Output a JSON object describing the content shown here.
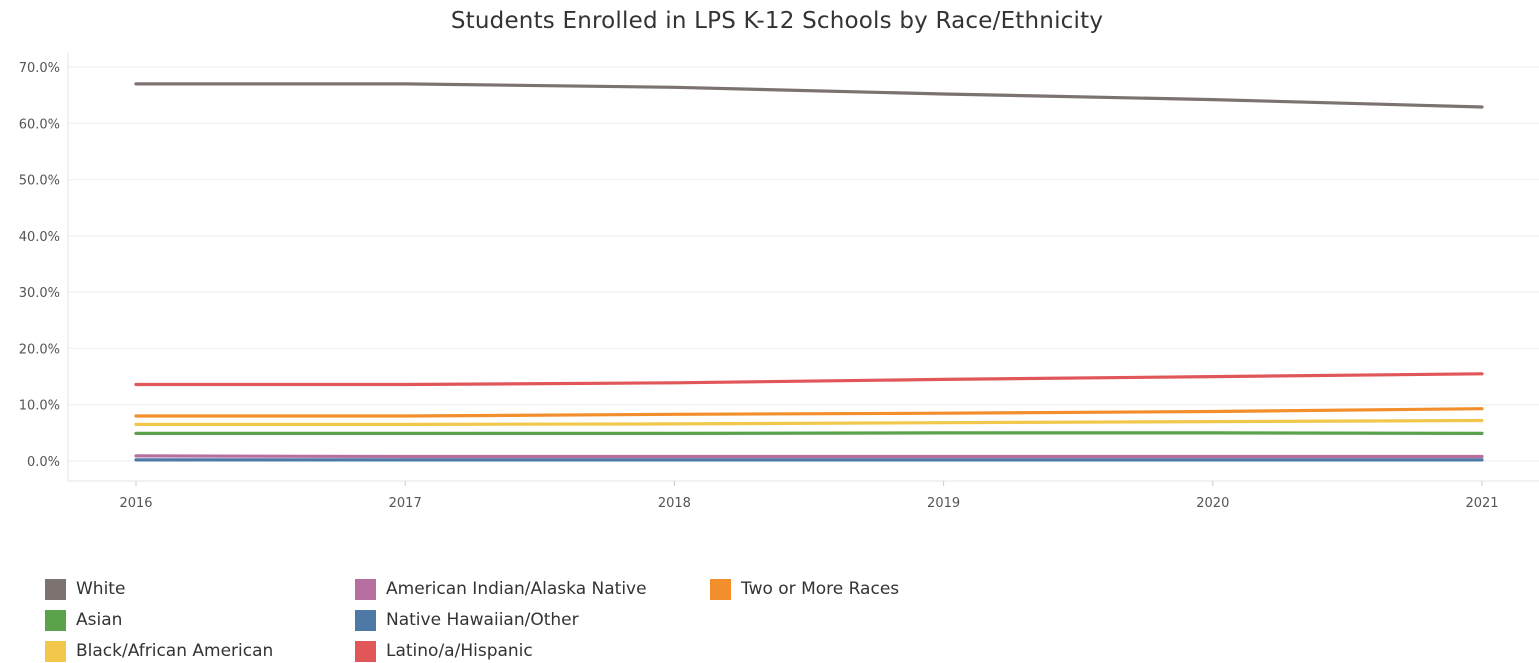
{
  "chart_data": {
    "type": "line",
    "title": "Students Enrolled in LPS K-12 Schools by Race/Ethnicity",
    "xlabel": "",
    "ylabel": "",
    "x": [
      "2016",
      "2017",
      "2018",
      "2019",
      "2020",
      "2021"
    ],
    "ylim": [
      0,
      70
    ],
    "y_ticks": [
      "0.0%",
      "10.0%",
      "20.0%",
      "30.0%",
      "40.0%",
      "50.0%",
      "60.0%",
      "70.0%"
    ],
    "y_tick_values": [
      0,
      10,
      20,
      30,
      40,
      50,
      60,
      70
    ],
    "grid": true,
    "legend_position": "bottom-left",
    "series": [
      {
        "name": "White",
        "color": "#7c7270",
        "values": [
          67.0,
          67.0,
          66.4,
          65.2,
          64.2,
          62.9
        ]
      },
      {
        "name": "Asian",
        "color": "#5aa24b",
        "values": [
          4.9,
          4.9,
          4.9,
          5.0,
          5.0,
          4.9
        ]
      },
      {
        "name": "Black/African American",
        "color": "#f1c84b",
        "values": [
          6.5,
          6.5,
          6.6,
          6.8,
          7.0,
          7.2
        ]
      },
      {
        "name": "American Indian/Alaska Native",
        "color": "#b76fa0",
        "values": [
          0.9,
          0.8,
          0.8,
          0.8,
          0.8,
          0.8
        ]
      },
      {
        "name": "Native Hawaiian/Other",
        "color": "#4e79a7",
        "values": [
          0.2,
          0.2,
          0.2,
          0.2,
          0.2,
          0.2
        ]
      },
      {
        "name": "Latino/a/Hispanic",
        "color": "#e15759",
        "values": [
          13.6,
          13.6,
          13.9,
          14.5,
          15.0,
          15.5
        ]
      },
      {
        "name": "Two or More Races",
        "color": "#f28e2b",
        "values": [
          8.0,
          8.0,
          8.3,
          8.5,
          8.8,
          9.3
        ]
      }
    ]
  }
}
